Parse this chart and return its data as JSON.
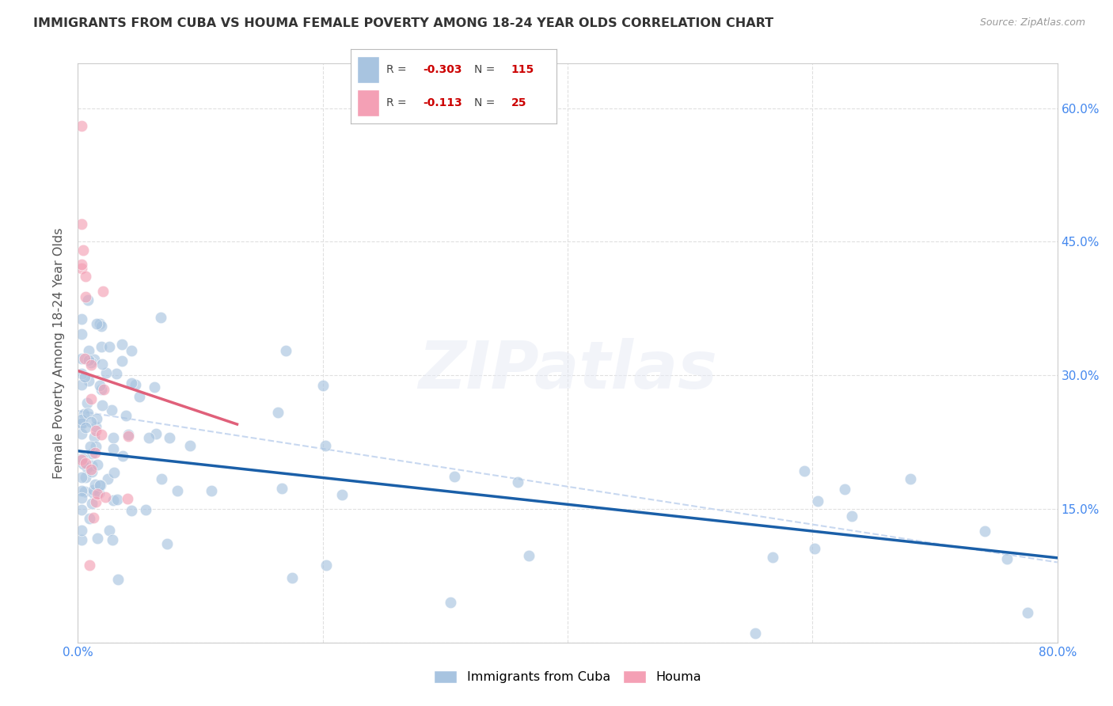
{
  "title": "IMMIGRANTS FROM CUBA VS HOUMA FEMALE POVERTY AMONG 18-24 YEAR OLDS CORRELATION CHART",
  "source_text": "Source: ZipAtlas.com",
  "ylabel": "Female Poverty Among 18-24 Year Olds",
  "xlim": [
    0.0,
    0.8
  ],
  "ylim": [
    0.0,
    0.65
  ],
  "x_ticks": [
    0.0,
    0.2,
    0.4,
    0.6,
    0.8
  ],
  "x_tick_labels_left": "0.0%",
  "x_tick_labels_right": "80.0%",
  "y_ticks": [
    0.0,
    0.15,
    0.3,
    0.45,
    0.6
  ],
  "y_tick_labels_right": [
    "",
    "15.0%",
    "30.0%",
    "45.0%",
    "60.0%"
  ],
  "watermark": "ZIPatlas",
  "blue_line_x": [
    0.0,
    0.8
  ],
  "blue_line_y": [
    0.215,
    0.095
  ],
  "pink_line_x": [
    0.0,
    0.13
  ],
  "pink_line_y": [
    0.305,
    0.245
  ],
  "dashed_line_x": [
    0.0,
    0.8
  ],
  "dashed_line_y": [
    0.26,
    0.09
  ],
  "scatter_blue": "#a8c4e0",
  "scatter_pink": "#f4a0b5",
  "line_blue": "#1a5fa8",
  "line_pink": "#e0607a",
  "line_dash": "#c8d8f0",
  "background_color": "#ffffff",
  "grid_color": "#e0e0e0",
  "tick_color": "#4488ee",
  "title_color": "#333333",
  "source_color": "#999999",
  "ylabel_color": "#555555",
  "R1": "-0.303",
  "N1": "115",
  "R2": "-0.113",
  "N2": "25",
  "label1": "Immigrants from Cuba",
  "label2": "Houma",
  "legend_R_color": "#cc0000",
  "legend_text_color": "#444444"
}
